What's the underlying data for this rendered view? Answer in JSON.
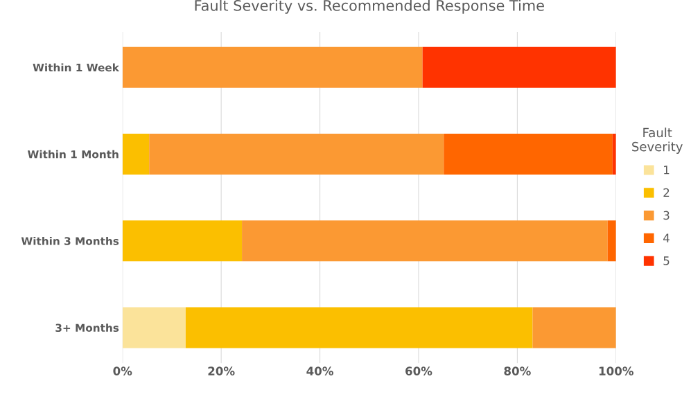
{
  "chart_data": {
    "type": "bar",
    "orientation": "horizontal",
    "stacked": true,
    "title": "Fault Severity vs. Recommended Response Time",
    "categories": [
      "Within 1 Week",
      "Within 1 Month",
      "Within 3 Months",
      "3+ Months"
    ],
    "series": [
      {
        "name": "1",
        "color": "#fbe39a",
        "values": [
          0,
          0,
          0,
          12.8
        ]
      },
      {
        "name": "2",
        "color": "#fbbf00",
        "values": [
          0,
          5.4,
          24.2,
          70.3
        ]
      },
      {
        "name": "3",
        "color": "#fb9933",
        "values": [
          60.8,
          59.7,
          74.1,
          16.9
        ]
      },
      {
        "name": "4",
        "color": "#ff6600",
        "values": [
          0,
          34.2,
          1.7,
          0
        ]
      },
      {
        "name": "5",
        "color": "#ff3300",
        "values": [
          39.2,
          0.7,
          0,
          0
        ]
      }
    ],
    "legend_title": "Fault\nSeverity",
    "legend": "right",
    "xlim": [
      0,
      100
    ],
    "xticks": [
      {
        "value": 0,
        "label": "0%"
      },
      {
        "value": 20,
        "label": "20%"
      },
      {
        "value": 40,
        "label": "40%"
      },
      {
        "value": 60,
        "label": "60%"
      },
      {
        "value": 80,
        "label": "80%"
      },
      {
        "value": 100,
        "label": "100%"
      }
    ],
    "grid": "x"
  }
}
